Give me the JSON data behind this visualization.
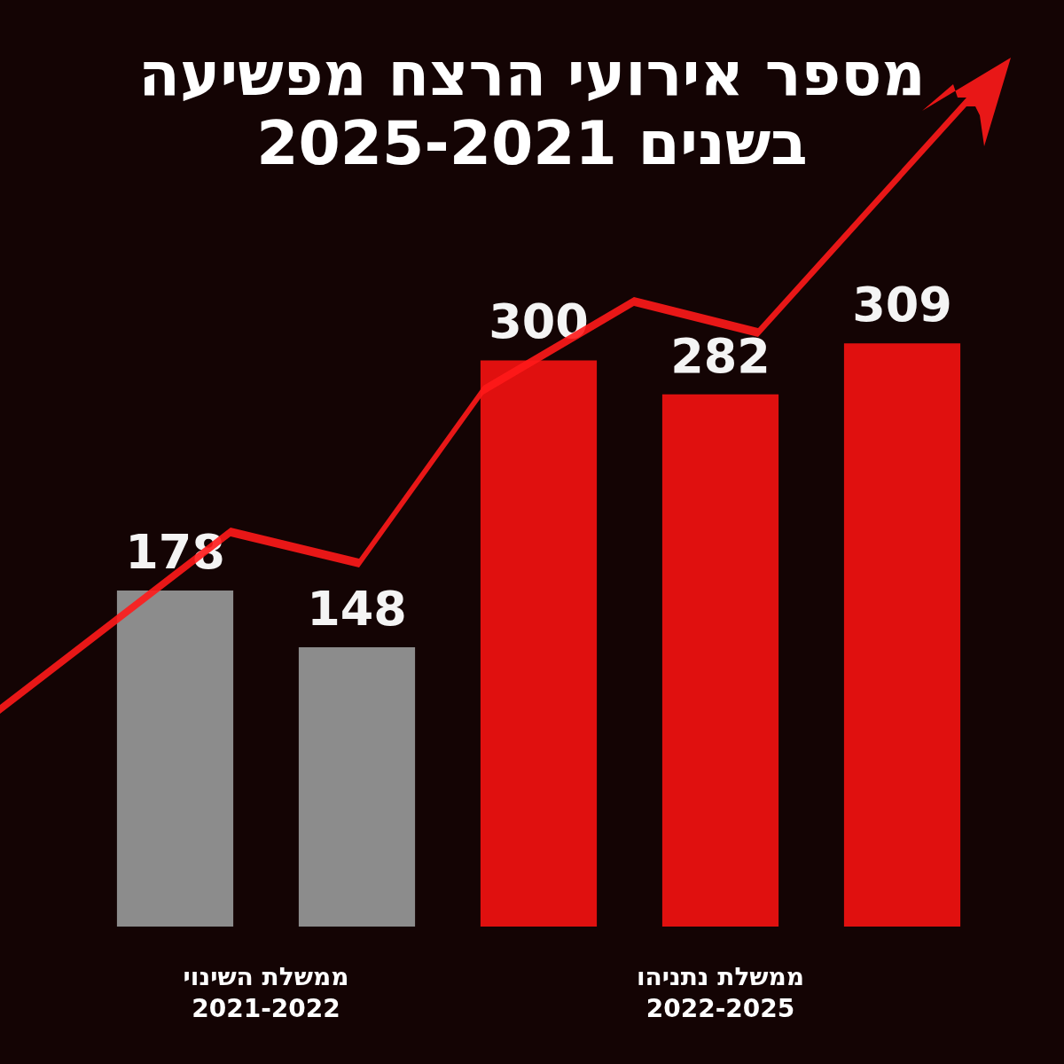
{
  "chart_data": {
    "type": "bar",
    "title": "מספר אירועי הרצח מפשיעה\nבשנים 2025-2021",
    "categories": [
      null,
      null,
      null,
      null,
      null
    ],
    "values": [
      178,
      148,
      300,
      282,
      309
    ],
    "colors": [
      "#8c8c8c",
      "#8c8c8c",
      "#e0100f",
      "#e0100f",
      "#e0100f"
    ],
    "data_labels": true,
    "annotations": [
      "ממשלת השינוי\n2021-2022",
      "ממשלת נתניהו\n2022-2025"
    ]
  }
}
